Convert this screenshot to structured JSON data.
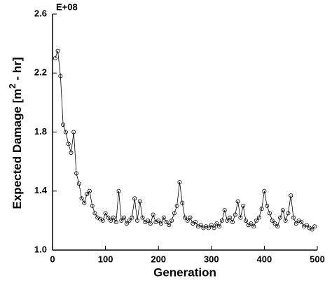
{
  "chart_data": {
    "type": "line",
    "xlabel": "Generation",
    "ylabel": "Expected Damage [m",
    "ylabel_sup": "2",
    "ylabel_end": " - hr]",
    "annotation": "E+08",
    "x": [
      5,
      10,
      15,
      20,
      25,
      30,
      35,
      40,
      45,
      50,
      55,
      60,
      65,
      70,
      75,
      80,
      85,
      90,
      95,
      100,
      105,
      110,
      115,
      120,
      125,
      130,
      135,
      140,
      145,
      150,
      155,
      160,
      165,
      170,
      175,
      180,
      185,
      190,
      195,
      200,
      205,
      210,
      215,
      220,
      225,
      230,
      235,
      240,
      245,
      250,
      255,
      260,
      265,
      270,
      275,
      280,
      285,
      290,
      295,
      300,
      305,
      310,
      315,
      320,
      325,
      330,
      335,
      340,
      345,
      350,
      355,
      360,
      365,
      370,
      375,
      380,
      385,
      390,
      395,
      400,
      405,
      410,
      415,
      420,
      425,
      430,
      435,
      440,
      445,
      450,
      455,
      460,
      465,
      470,
      475,
      480,
      485,
      490,
      495
    ],
    "series": [
      {
        "color": "#000000",
        "values": [
          2.3,
          2.35,
          2.18,
          1.85,
          1.8,
          1.72,
          1.66,
          1.8,
          1.52,
          1.45,
          1.35,
          1.32,
          1.38,
          1.4,
          1.3,
          1.25,
          1.22,
          1.21,
          1.2,
          1.25,
          1.22,
          1.2,
          1.22,
          1.19,
          1.4,
          1.2,
          1.22,
          1.18,
          1.2,
          1.22,
          1.35,
          1.2,
          1.33,
          1.22,
          1.19,
          1.2,
          1.18,
          1.24,
          1.19,
          1.2,
          1.18,
          1.22,
          1.19,
          1.17,
          1.2,
          1.25,
          1.3,
          1.46,
          1.32,
          1.22,
          1.2,
          1.22,
          1.18,
          1.19,
          1.16,
          1.17,
          1.15,
          1.16,
          1.15,
          1.17,
          1.15,
          1.18,
          1.16,
          1.2,
          1.27,
          1.2,
          1.22,
          1.19,
          1.24,
          1.33,
          1.22,
          1.3,
          1.2,
          1.17,
          1.18,
          1.16,
          1.2,
          1.22,
          1.28,
          1.4,
          1.3,
          1.25,
          1.2,
          1.18,
          1.16,
          1.22,
          1.27,
          1.2,
          1.25,
          1.37,
          1.22,
          1.18,
          1.2,
          1.19,
          1.16,
          1.17,
          1.15,
          1.14,
          1.16
        ]
      }
    ],
    "xlim": [
      0,
      500
    ],
    "xticks": [
      0,
      100,
      200,
      300,
      400,
      500
    ],
    "ylim": [
      1.0,
      2.6
    ],
    "yticks": [
      {
        "value": 1.0,
        "label": "1.0"
      },
      {
        "value": 1.4,
        "label": "1.4"
      },
      {
        "value": 1.8,
        "label": "1.8"
      },
      {
        "value": 2.2,
        "label": "2.2"
      },
      {
        "value": 2.6,
        "label": "2.6"
      }
    ]
  }
}
